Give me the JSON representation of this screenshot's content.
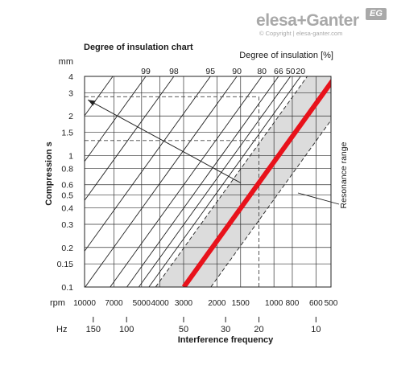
{
  "brand": {
    "name": "elesa+Ganter",
    "badge": "EG",
    "copyright": "© Copyright | elesa-ganter.com"
  },
  "chart_data": {
    "type": "line",
    "title": "Degree of insulation chart",
    "top_axis_label": "Degree of insulation [%]",
    "ylabel": "Compression s",
    "y_unit": "mm",
    "y_scale": "log",
    "ylim": [
      0.1,
      4
    ],
    "y_ticks": [
      0.1,
      0.15,
      0.2,
      0.3,
      0.4,
      0.5,
      0.6,
      0.8,
      1,
      1.5,
      2,
      3,
      4
    ],
    "x_scale": "log",
    "xlabel": "Interference frequency",
    "rpm_label": "rpm",
    "rpm_ticks": [
      10000,
      7000,
      5000,
      4000,
      3000,
      2000,
      1500,
      1000,
      800,
      600,
      500
    ],
    "hz_label": "Hz",
    "hz_ticks": [
      150,
      100,
      50,
      30,
      20,
      10
    ],
    "xlim_hz": [
      166.7,
      8.33
    ],
    "insulation_lines": [
      {
        "label": "99",
        "ratio": 10.05
      },
      {
        "label": "98",
        "ratio": 7.14
      },
      {
        "label": "95",
        "ratio": 4.58
      },
      {
        "label": "90",
        "ratio": 3.32
      },
      {
        "label": "80",
        "ratio": 2.45
      },
      {
        "label": "66",
        "ratio": 2.0
      },
      {
        "label": "50",
        "ratio": 1.73
      },
      {
        "label": "20",
        "ratio": 1.53
      }
    ],
    "extra_lines_ratio": [
      31.0,
      22.0,
      15.0
    ],
    "series": [
      {
        "name": "",
        "ratio": 1.0,
        "color": "#e8121b"
      }
    ],
    "resonance_range": {
      "label": "Resonance range",
      "ratio_low": 0.72,
      "ratio_high": 1.41
    },
    "example": {
      "hz": 20,
      "s": 1.3,
      "s_to": 2.8
    },
    "grid": true
  }
}
